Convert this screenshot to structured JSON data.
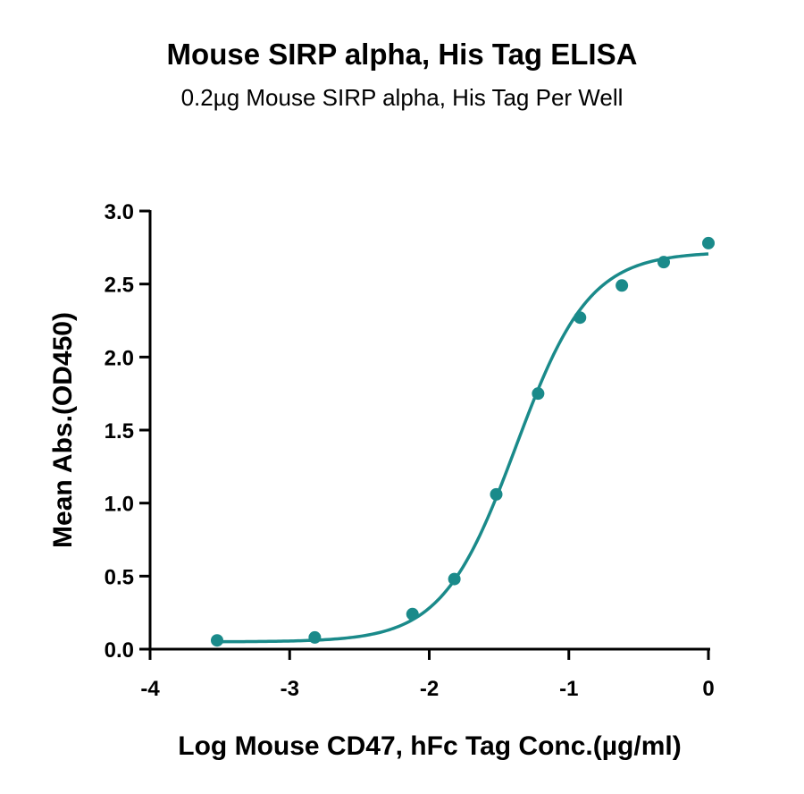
{
  "chart_data": {
    "type": "scatter",
    "title": "Mouse SIRP alpha, His Tag ELISA",
    "subtitle": "0.2µg Mouse SIRP alpha, His Tag Per Well",
    "xlabel": "Log Mouse CD47, hFc Tag Conc.(µg/ml)",
    "ylabel": "Mean Abs.(OD450)",
    "xlim": [
      -4,
      0
    ],
    "ylim": [
      0,
      3.0
    ],
    "xticks": [
      "-4",
      "-3",
      "-2",
      "-1",
      "0"
    ],
    "yticks": [
      "0.0",
      "0.5",
      "1.0",
      "1.5",
      "2.0",
      "2.5",
      "3.0"
    ],
    "grid": false,
    "series": [
      {
        "x": [
          -3.52,
          -2.82,
          -2.12,
          -1.82,
          -1.52,
          -1.22,
          -0.92,
          -0.62,
          -0.32,
          0.0
        ],
        "values": [
          0.06,
          0.08,
          0.24,
          0.48,
          1.06,
          1.75,
          2.27,
          2.49,
          2.65,
          2.78
        ],
        "fit": {
          "model": "4PL",
          "bottom": 0.05,
          "top": 2.72,
          "logEC50": -1.38,
          "hill": 1.65
        },
        "color": "#1a8a8a"
      }
    ]
  }
}
